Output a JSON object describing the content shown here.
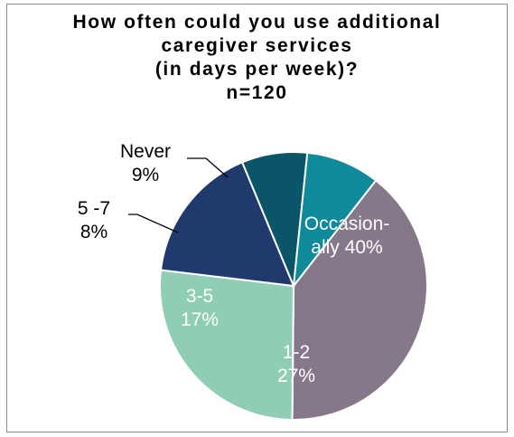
{
  "chart_data": {
    "type": "pie",
    "title_lines": [
      "How often could you use additional",
      "caregiver services",
      "(in days per week)?",
      "n=120"
    ],
    "slices": [
      {
        "label": "Occasion-ally",
        "value": 40,
        "label_lines": [
          "Occasion-",
          "ally 40%"
        ],
        "color": "#84788A",
        "text_color": "#ffffff"
      },
      {
        "label": "1-2",
        "value": 27,
        "label_lines": [
          "1-2",
          "27%"
        ],
        "color": "#8FCDB5",
        "text_color": "#ffffff"
      },
      {
        "label": "3-5",
        "value": 17,
        "label_lines": [
          "3-5",
          "17%"
        ],
        "color": "#203A6E",
        "text_color": "#ffffff"
      },
      {
        "label": "5 -7",
        "value": 8,
        "label_lines": [
          "5 -7",
          "8%"
        ],
        "color": "#0B5568",
        "text_color": "#000000"
      },
      {
        "label": "Never",
        "value": 9,
        "label_lines": [
          "Never",
          "9%"
        ],
        "color": "#0E8A9A",
        "text_color": "#000000"
      }
    ]
  }
}
